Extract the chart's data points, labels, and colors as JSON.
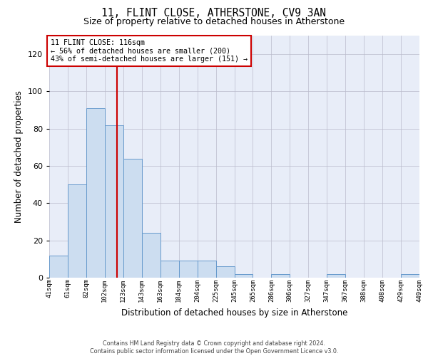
{
  "title": "11, FLINT CLOSE, ATHERSTONE, CV9 3AN",
  "subtitle": "Size of property relative to detached houses in Atherstone",
  "xlabel": "Distribution of detached houses by size in Atherstone",
  "ylabel": "Number of detached properties",
  "bar_labels": [
    "41sqm",
    "61sqm",
    "82sqm",
    "102sqm",
    "123sqm",
    "143sqm",
    "163sqm",
    "184sqm",
    "204sqm",
    "225sqm",
    "245sqm",
    "265sqm",
    "286sqm",
    "306sqm",
    "327sqm",
    "347sqm",
    "367sqm",
    "388sqm",
    "408sqm",
    "429sqm",
    "449sqm"
  ],
  "bar_values": [
    12,
    50,
    91,
    82,
    64,
    24,
    9,
    9,
    9,
    6,
    2,
    0,
    2,
    0,
    0,
    2,
    0,
    0,
    0,
    2
  ],
  "bar_color": "#ccddf0",
  "bar_edge_color": "#6699cc",
  "annotation_line1": "11 FLINT CLOSE: 116sqm",
  "annotation_line2": "← 56% of detached houses are smaller (200)",
  "annotation_line3": "43% of semi-detached houses are larger (151) →",
  "ylim": [
    0,
    130
  ],
  "yticks": [
    0,
    20,
    40,
    60,
    80,
    100,
    120
  ],
  "grid_color": "#bbbbcc",
  "plot_bg_color": "#e8edf8",
  "footer1": "Contains HM Land Registry data © Crown copyright and database right 2024.",
  "footer2": "Contains public sector information licensed under the Open Government Licence v3.0.",
  "red_line_color": "#cc0000",
  "ann_box_edge_color": "#cc0000"
}
